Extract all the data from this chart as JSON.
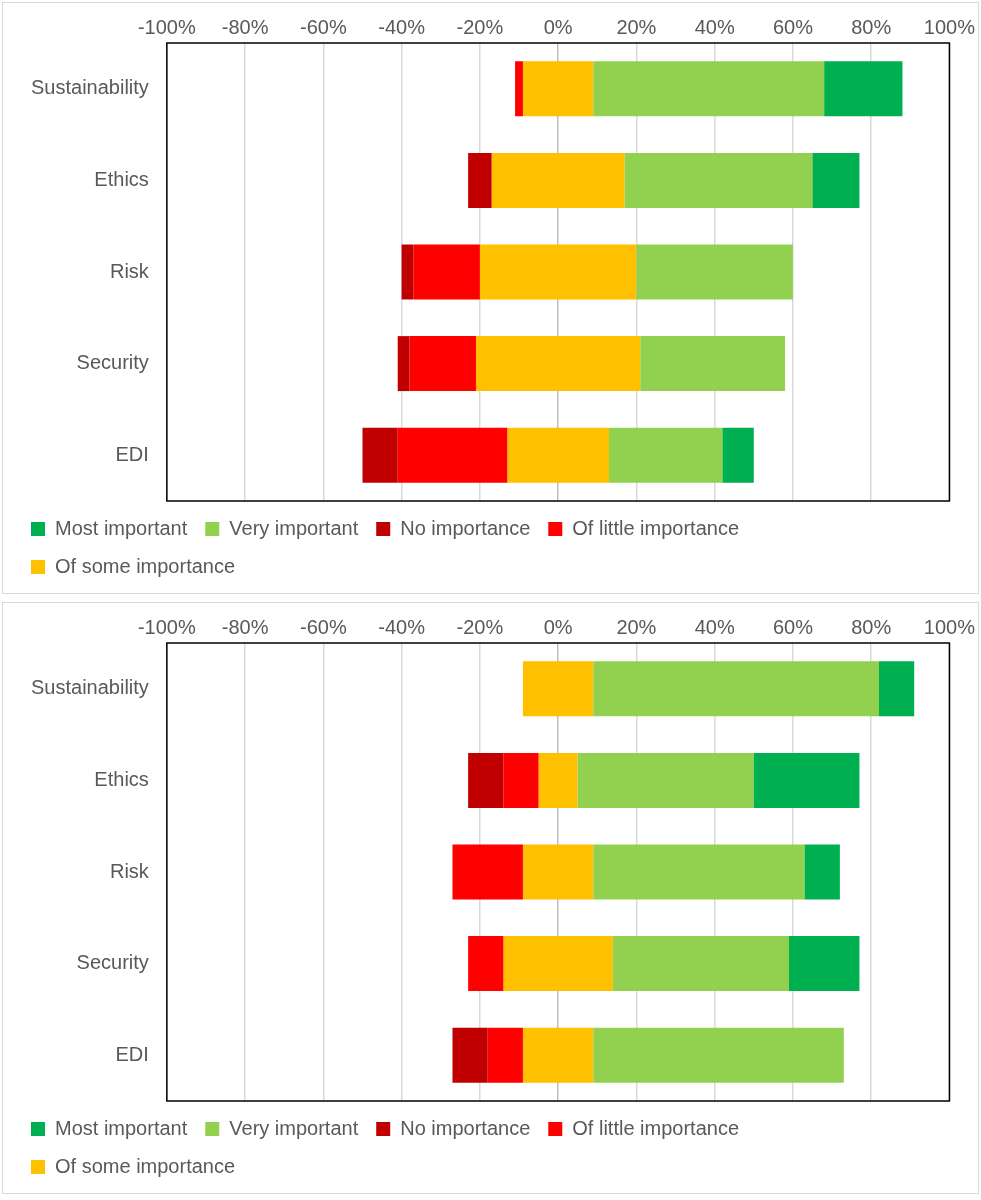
{
  "chart_data": [
    {
      "type": "bar",
      "orientation": "horizontal",
      "categories": [
        "Sustainability",
        "Ethics",
        "Risk",
        "Security",
        "EDI"
      ],
      "xlim": [
        -100,
        100
      ],
      "xticks": [
        {
          "value": -100,
          "label": "-100%"
        },
        {
          "value": -80,
          "label": "-80%"
        },
        {
          "value": -60,
          "label": "-60%"
        },
        {
          "value": -40,
          "label": "-40%"
        },
        {
          "value": -20,
          "label": "-20%"
        },
        {
          "value": 0,
          "label": "0%"
        },
        {
          "value": 20,
          "label": "20%"
        },
        {
          "value": 40,
          "label": "40%"
        },
        {
          "value": 60,
          "label": "60%"
        },
        {
          "value": 80,
          "label": "80%"
        },
        {
          "value": 100,
          "label": "100%"
        }
      ],
      "grid": "x",
      "legend": "bottom",
      "series": [
        {
          "name": "Most important",
          "color": "#00b050",
          "base": [
            68,
            65,
            null,
            null,
            42
          ],
          "values": [
            20,
            12,
            null,
            null,
            8
          ]
        },
        {
          "name": "Very important",
          "color": "#92d050",
          "base": [
            9,
            17,
            20,
            21,
            13
          ],
          "values": [
            59,
            48,
            40,
            37,
            29
          ]
        },
        {
          "name": "No importance",
          "color": "#c00000",
          "base": [
            null,
            -23,
            -40,
            -41,
            -50
          ],
          "values": [
            null,
            6,
            3,
            3,
            9
          ]
        },
        {
          "name": "Of little importance",
          "color": "#ff0000",
          "base": [
            -11,
            null,
            -37,
            -38,
            -41
          ],
          "values": [
            2,
            null,
            17,
            17,
            28
          ]
        },
        {
          "name": "Of some importance",
          "color": "#ffc000",
          "base": [
            -9,
            -17,
            -20,
            -21,
            -13
          ],
          "values": [
            18,
            34,
            40,
            42,
            26
          ]
        }
      ]
    },
    {
      "type": "bar",
      "orientation": "horizontal",
      "categories": [
        "Sustainability",
        "Ethics",
        "Risk",
        "Security",
        "EDI"
      ],
      "xlim": [
        -100,
        100
      ],
      "xticks": [
        {
          "value": -100,
          "label": "-100%"
        },
        {
          "value": -80,
          "label": "-80%"
        },
        {
          "value": -60,
          "label": "-60%"
        },
        {
          "value": -40,
          "label": "-40%"
        },
        {
          "value": -20,
          "label": "-20%"
        },
        {
          "value": 0,
          "label": "0%"
        },
        {
          "value": 20,
          "label": "20%"
        },
        {
          "value": 40,
          "label": "40%"
        },
        {
          "value": 60,
          "label": "60%"
        },
        {
          "value": 80,
          "label": "80%"
        },
        {
          "value": 100,
          "label": "100%"
        }
      ],
      "grid": "x",
      "legend": "bottom",
      "series": [
        {
          "name": "Most important",
          "color": "#00b050",
          "base": [
            82,
            50,
            63,
            59,
            null
          ],
          "values": [
            9,
            27,
            9,
            18,
            null
          ]
        },
        {
          "name": "Very important",
          "color": "#92d050",
          "base": [
            9,
            5,
            9,
            14,
            9
          ],
          "values": [
            73,
            45,
            54,
            45,
            64
          ]
        },
        {
          "name": "No importance",
          "color": "#c00000",
          "base": [
            null,
            -23,
            null,
            null,
            -27
          ],
          "values": [
            null,
            9,
            null,
            null,
            9
          ]
        },
        {
          "name": "Of little importance",
          "color": "#ff0000",
          "base": [
            null,
            -14,
            -27,
            -23,
            -18
          ],
          "values": [
            null,
            9,
            18,
            9,
            9
          ]
        },
        {
          "name": "Of some importance",
          "color": "#ffc000",
          "base": [
            -9,
            -5,
            -9,
            -14,
            -9
          ],
          "values": [
            18,
            10,
            18,
            28,
            18
          ]
        }
      ]
    }
  ]
}
